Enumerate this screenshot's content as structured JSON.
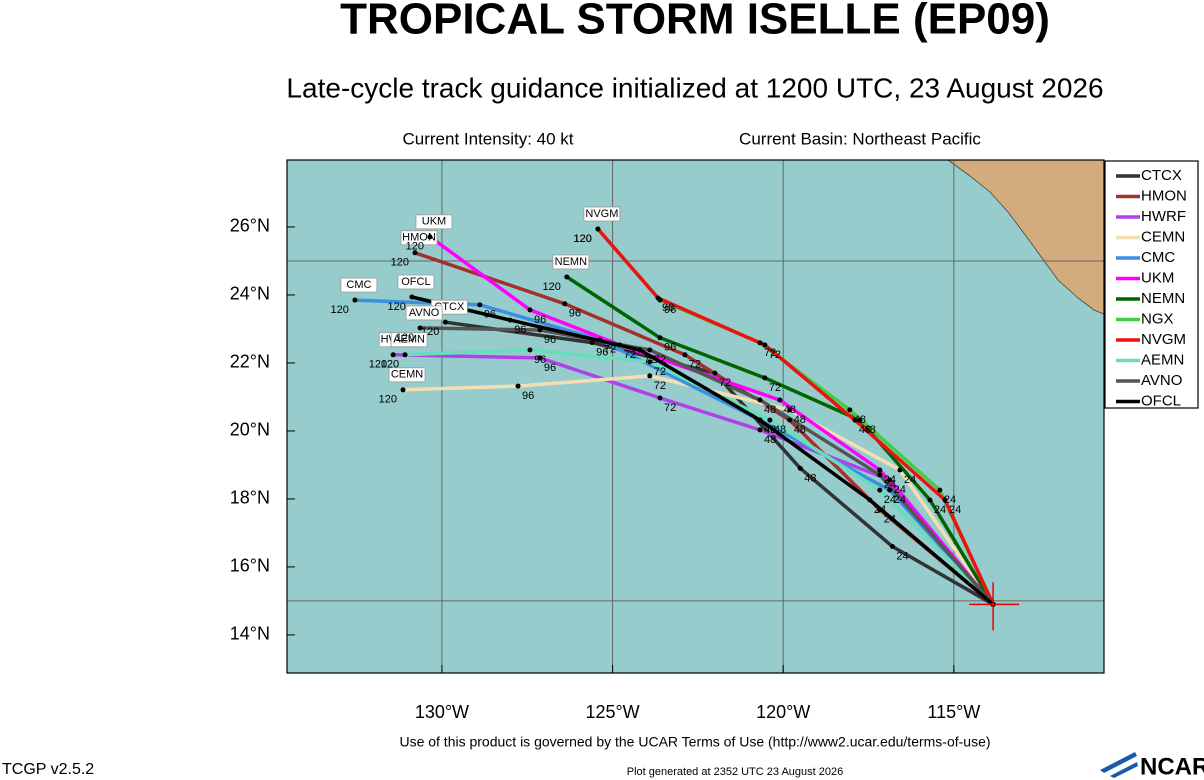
{
  "chart_data": {
    "type": "track",
    "title": "TROPICAL STORM ISELLE (EP09)",
    "subtitle": "Late-cycle track guidance initialized at 1200 UTC, 23 August 2026",
    "info_left": "Current Intensity: 40 kt",
    "info_right": "Current Basin: Northeast Pacific",
    "footer": "Use of this product is governed by the UCAR Terms of Use (http://www2.ucar.edu/terms-of-use)",
    "version": "TCGP v2.5.2",
    "generated": "Plot generated at 2352 UTC   23 August 2026",
    "logo": "NCAR",
    "xlim": [
      -134.54,
      -110.6
    ],
    "ylim": [
      12.88,
      27.97
    ],
    "xticks": [
      {
        "value": -130,
        "label": "130°W"
      },
      {
        "value": -125,
        "label": "125°W"
      },
      {
        "value": -120,
        "label": "120°W"
      },
      {
        "value": -115,
        "label": "115°W"
      }
    ],
    "yticks": [
      {
        "value": 14,
        "label": "14°N"
      },
      {
        "value": 16,
        "label": "16°N"
      },
      {
        "value": 18,
        "label": "18°N"
      },
      {
        "value": 20,
        "label": "20°N"
      },
      {
        "value": 22,
        "label": "22°N"
      },
      {
        "value": 24,
        "label": "24°N"
      },
      {
        "value": 26,
        "label": "26°N"
      }
    ],
    "grid_lat": [
      15,
      25
    ],
    "grid_lon": [
      -130,
      -125,
      -120,
      -115
    ],
    "current_position": {
      "lon": -113.85,
      "lat": 14.9
    },
    "hour_labels": [
      null,
      24,
      48,
      72,
      96,
      120
    ],
    "series": [
      {
        "name": "CTCX",
        "color": "#333333",
        "lon": [
          -113.85,
          -116.8,
          -119.5,
          -122.0,
          -125.6,
          -129.9
        ],
        "lat": [
          14.9,
          16.6,
          18.9,
          21.7,
          22.6,
          23.2
        ]
      },
      {
        "name": "HMON",
        "color": "#a3302a",
        "lon": [
          -113.85,
          -117.17,
          -119.81,
          -122.88,
          -126.4,
          -130.79
        ],
        "lat": [
          14.9,
          17.68,
          20.32,
          22.24,
          23.74,
          25.24
        ]
      },
      {
        "name": "HWRF",
        "color": "#b040e8",
        "lon": [
          -113.85,
          -116.88,
          -120.68,
          -123.61,
          -127.13,
          -131.43
        ],
        "lat": [
          14.9,
          18.56,
          20.03,
          20.97,
          22.15,
          22.24
        ]
      },
      {
        "name": "CEMN",
        "color": "#f5deb3",
        "lon": [
          -113.85,
          -116.58,
          -119.81,
          -123.91,
          -127.77,
          -131.14
        ],
        "lat": [
          14.9,
          18.85,
          20.62,
          21.62,
          21.32,
          21.21
        ]
      },
      {
        "name": "CMC",
        "color": "#3a8fe0",
        "lon": [
          -113.85,
          -116.88,
          -120.68,
          -125.37,
          -128.89,
          -132.55
        ],
        "lat": [
          14.9,
          18.26,
          20.32,
          22.68,
          23.71,
          23.85
        ]
      },
      {
        "name": "UKM",
        "color": "#ff00ff",
        "lon": [
          -113.85,
          -117.17,
          -120.1,
          -124.79,
          -127.42,
          -130.35
        ],
        "lat": [
          14.9,
          18.85,
          20.91,
          22.53,
          23.56,
          25.71
        ]
      },
      {
        "name": "NEMN",
        "color": "#006400",
        "lon": [
          -113.85,
          -115.7,
          -117.76,
          -120.54,
          -123.61,
          -126.34
        ],
        "lat": [
          14.9,
          17.97,
          20.32,
          21.56,
          22.74,
          24.53
        ]
      },
      {
        "name": "NGX",
        "color": "#44cc44",
        "lon": [
          -113.85,
          -115.41,
          -118.05,
          -120.68,
          -123.61,
          -125.43
        ],
        "lat": [
          14.9,
          18.26,
          20.62,
          22.59,
          23.85,
          25.94
        ]
      },
      {
        "name": "NVGM",
        "color": "#ee1111",
        "lon": [
          -113.85,
          -115.26,
          -117.9,
          -120.54,
          -123.67,
          -125.43
        ],
        "lat": [
          14.9,
          17.97,
          20.32,
          22.53,
          23.91,
          25.94
        ]
      },
      {
        "name": "AEMN",
        "color": "#66ddbb",
        "lon": [
          -113.85,
          -117.17,
          -120.39,
          -123.91,
          -127.42,
          -131.08
        ],
        "lat": [
          14.9,
          18.26,
          20.32,
          22.03,
          22.38,
          22.24
        ]
      },
      {
        "name": "AVNO",
        "color": "#555555",
        "lon": [
          -113.85,
          -117.17,
          -120.68,
          -123.91,
          -127.13,
          -130.64
        ],
        "lat": [
          14.9,
          18.71,
          20.91,
          22.38,
          22.97,
          23.03
        ]
      },
      {
        "name": "OFCL",
        "color": "#000000",
        "lon": [
          -113.85,
          -117.46,
          -120.68,
          -124.2,
          -128.0,
          -130.88
        ],
        "lat": [
          14.9,
          17.97,
          20.32,
          22.38,
          23.26,
          23.94
        ]
      }
    ]
  }
}
